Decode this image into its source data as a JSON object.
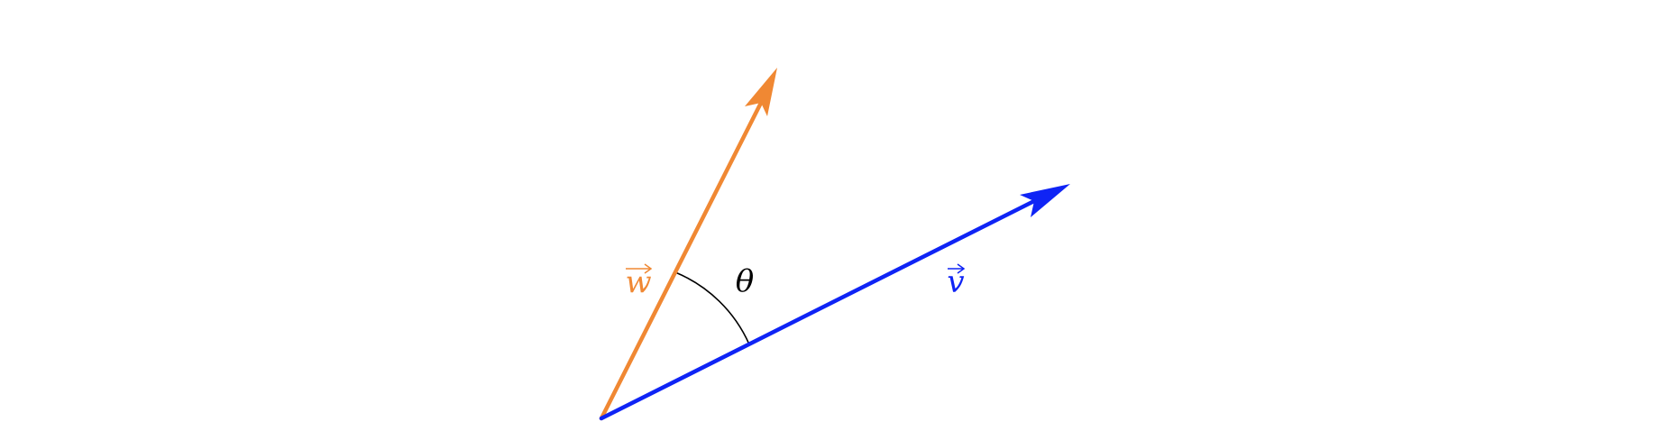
{
  "diagram": {
    "vector_w": {
      "label": "w",
      "color": "#F08833"
    },
    "vector_v": {
      "label": "v",
      "color": "#0F24F5"
    },
    "angle": {
      "label": "θ",
      "color": "#000000"
    }
  }
}
